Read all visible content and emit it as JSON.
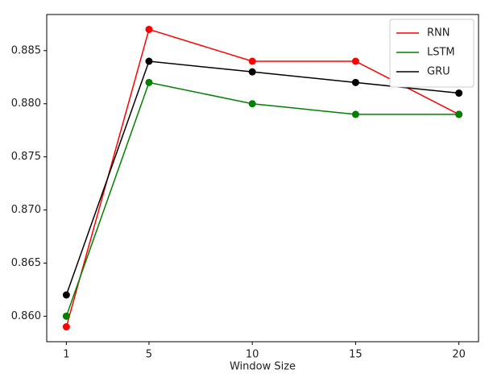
{
  "chart_data": {
    "type": "line",
    "xlabel": "Window Size",
    "x": [
      1,
      5,
      10,
      15,
      20
    ],
    "series": [
      {
        "name": "RNN",
        "color": "#ff0000",
        "values": [
          0.859,
          0.887,
          0.884,
          0.884,
          0.879
        ]
      },
      {
        "name": "LSTM",
        "color": "#008000",
        "values": [
          0.86,
          0.882,
          0.88,
          0.879,
          0.879
        ]
      },
      {
        "name": "GRU",
        "color": "#000000",
        "values": [
          0.862,
          0.884,
          0.883,
          0.882,
          0.881
        ]
      }
    ],
    "xlim": [
      0.05,
      20.95
    ],
    "xticks": [
      1,
      5,
      10,
      15,
      20
    ],
    "ylim": [
      0.8576,
      0.8884
    ],
    "yticks": [
      {
        "value": 0.86,
        "label": "0.860"
      },
      {
        "value": 0.865,
        "label": "0.865"
      },
      {
        "value": 0.87,
        "label": "0.870"
      },
      {
        "value": 0.875,
        "label": "0.875"
      },
      {
        "value": 0.88,
        "label": "0.880"
      },
      {
        "value": 0.885,
        "label": "0.885"
      }
    ],
    "legend": "upper right",
    "markers": true
  }
}
